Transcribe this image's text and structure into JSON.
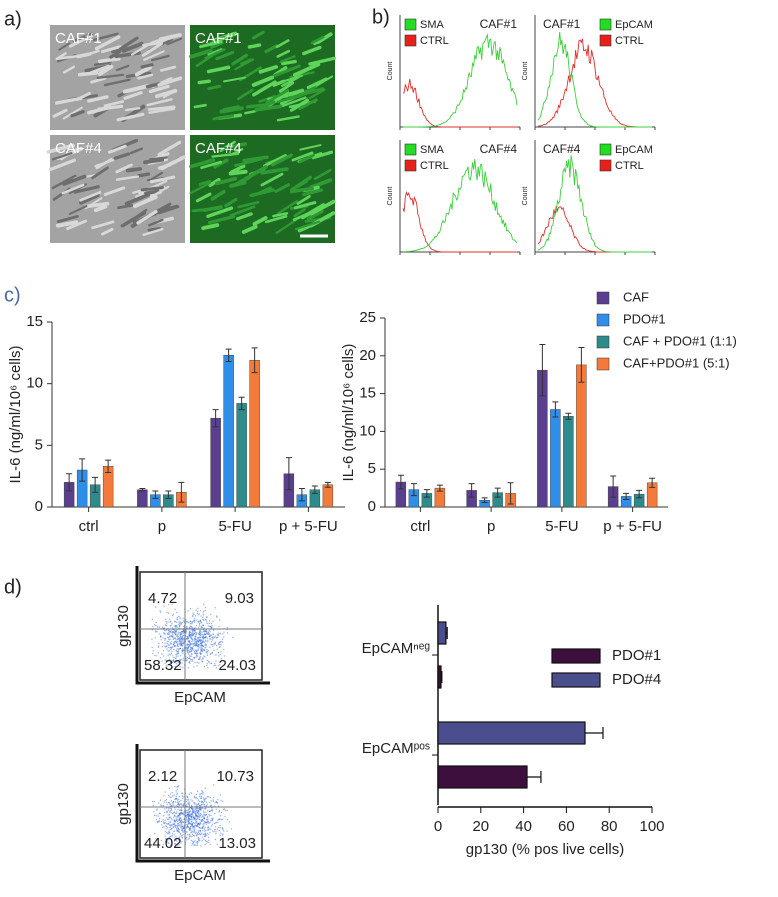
{
  "panels": {
    "a": "a)",
    "b": "b)",
    "c": "c)",
    "d": "d)"
  },
  "micrographs": [
    "CAF#1",
    "CAF#1",
    "CAF#4",
    "CAF#4"
  ],
  "flow_histograms": [
    {
      "title": "CAF#1",
      "legend": [
        "SMA",
        "CTRL"
      ],
      "ylabel": "Count"
    },
    {
      "title": "CAF#1",
      "legend": [
        "EpCAM",
        "CTRL"
      ],
      "ylabel": "Count"
    },
    {
      "title": "CAF#4",
      "legend": [
        "SMA",
        "CTRL"
      ],
      "ylabel": "Count"
    },
    {
      "title": "CAF#4",
      "legend": [
        "EpCAM",
        "CTRL"
      ],
      "ylabel": "Count"
    }
  ],
  "dot_plots": [
    {
      "quadrants": [
        4.72,
        9.03,
        58.32,
        24.03
      ],
      "xlabel": "EpCAM",
      "ylabel": "gp130"
    },
    {
      "quadrants": [
        2.12,
        10.73,
        44.02,
        13.03
      ],
      "xlabel": "EpCAM",
      "ylabel": "gp130"
    }
  ],
  "chart_data": [
    {
      "type": "bar",
      "ylabel": "IL-6 (ng/ml/10⁶ cells)",
      "categories": [
        "ctrl",
        "p",
        "5-FU",
        "p + 5-FU"
      ],
      "ylim": [
        0,
        15
      ],
      "yticks": [
        0,
        5,
        10,
        15
      ],
      "series": [
        {
          "color": "#5b3f8f",
          "values": [
            2.0,
            1.4,
            7.2,
            2.7
          ],
          "errors": [
            0.7,
            0.1,
            0.7,
            1.3
          ]
        },
        {
          "color": "#2f8fe8",
          "values": [
            3.0,
            1.0,
            12.3,
            1.0
          ],
          "errors": [
            0.9,
            0.3,
            0.5,
            0.5
          ]
        },
        {
          "color": "#2e8b8b",
          "values": [
            1.8,
            1.0,
            8.4,
            1.4
          ],
          "errors": [
            0.6,
            0.3,
            0.5,
            0.3
          ]
        },
        {
          "color": "#f47a3a",
          "values": [
            3.3,
            1.2,
            11.9,
            1.8
          ],
          "errors": [
            0.5,
            0.8,
            1.0,
            0.2
          ]
        }
      ]
    },
    {
      "type": "bar",
      "ylabel": "IL-6 (ng/ml/10⁶ cells)",
      "categories": [
        "ctrl",
        "p",
        "5-FU",
        "p + 5-FU"
      ],
      "ylim": [
        0,
        25
      ],
      "yticks": [
        0,
        5,
        10,
        15,
        20,
        25
      ],
      "series": [
        {
          "name": "CAF",
          "color": "#5b3f8f",
          "values": [
            3.3,
            2.2,
            18.1,
            2.7
          ],
          "errors": [
            0.9,
            0.9,
            3.4,
            1.4
          ]
        },
        {
          "name": "PDO#1",
          "color": "#2f8fe8",
          "values": [
            2.3,
            0.9,
            12.9,
            1.4
          ],
          "errors": [
            0.8,
            0.3,
            1.0,
            0.4
          ]
        },
        {
          "name": "CAF + PDO#1 (1:1)",
          "color": "#2e8b8b",
          "values": [
            1.8,
            1.9,
            12.0,
            1.7
          ],
          "errors": [
            0.5,
            0.6,
            0.4,
            0.5
          ]
        },
        {
          "name": "CAF+PDO#1 (5:1)",
          "color": "#f47a3a",
          "values": [
            2.5,
            1.8,
            18.8,
            3.2
          ],
          "errors": [
            0.4,
            1.4,
            2.3,
            0.6
          ]
        }
      ]
    },
    {
      "type": "hbar",
      "xlabel": "gp130 (% pos live cells)",
      "categories": [
        "EpCAMⁿᵉᵍ",
        "EpCAMᵖᵒˢ"
      ],
      "xlim": [
        0,
        100
      ],
      "xticks": [
        0,
        20,
        40,
        60,
        80,
        100
      ],
      "series": [
        {
          "name": "PDO#1",
          "color": "#3d0f3d",
          "values": [
            1.4,
            41.6
          ],
          "errors": [
            0.4,
            6.5
          ]
        },
        {
          "name": "PDO#4",
          "color": "#4a4e8e",
          "values": [
            3.7,
            68.7
          ],
          "errors": [
            0.6,
            8.4
          ]
        }
      ]
    }
  ]
}
